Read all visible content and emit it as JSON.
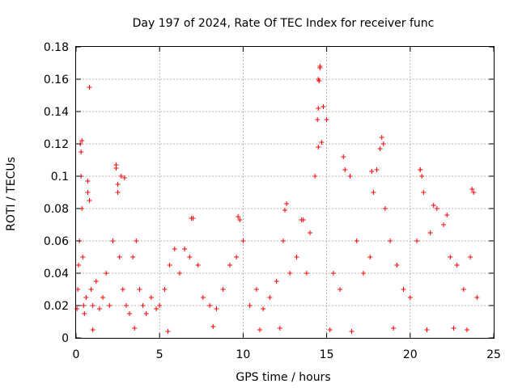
{
  "chart_data": {
    "type": "scatter",
    "title": "Day 197 of 2024, Rate Of TEC Index for receiver func",
    "xlabel": "GPS time / hours",
    "ylabel": "ROTI / TECUs",
    "xlim": [
      0,
      25
    ],
    "ylim": [
      0,
      0.18
    ],
    "x_ticks": [
      0,
      5,
      10,
      15,
      20,
      25
    ],
    "x_tick_labels": [
      "0",
      "5",
      "10",
      "15",
      "20",
      "25"
    ],
    "y_ticks": [
      0,
      0.02,
      0.04,
      0.06,
      0.08,
      0.1,
      0.12,
      0.14,
      0.16,
      0.18
    ],
    "y_tick_labels": [
      "0",
      "0.02",
      "0.04",
      "0.06",
      "0.08",
      "0.1",
      "0.12",
      "0.14",
      "0.16",
      "0.18"
    ],
    "grid": true,
    "marker": "plus",
    "color": "#ff0000",
    "series": [
      {
        "x": [
          0.05,
          0.1,
          0.15,
          0.2,
          0.25,
          0.3,
          0.35,
          0.4,
          0.45,
          0.5,
          0.6,
          0.7,
          0.8,
          0.9,
          1.0,
          1.2,
          1.4,
          1.6,
          1.8,
          2.0,
          2.2,
          2.4,
          2.5,
          2.6,
          2.7,
          2.8,
          3.0,
          3.2,
          3.4,
          3.6,
          3.8,
          4.0,
          4.2,
          4.5,
          4.8,
          5.0,
          5.3,
          5.6,
          5.9,
          6.2,
          6.5,
          6.8,
          7.0,
          7.3,
          7.6,
          8.0,
          8.4,
          8.8,
          9.2,
          9.6,
          9.8,
          10.0,
          10.4,
          10.8,
          11.2,
          11.6,
          12.0,
          12.4,
          12.6,
          12.8,
          13.2,
          13.6,
          13.8,
          14.0,
          14.3,
          14.5,
          14.6,
          14.8,
          15.0,
          15.4,
          15.8,
          16.0,
          16.4,
          16.8,
          17.2,
          17.6,
          17.8,
          18.0,
          18.3,
          18.5,
          18.8,
          19.2,
          19.6,
          20.0,
          20.4,
          20.6,
          20.8,
          21.2,
          21.6,
          22.0,
          22.4,
          22.8,
          23.2,
          23.6,
          23.8,
          24.0,
          0.3,
          0.7,
          2.4,
          2.9,
          6.9,
          9.7,
          12.5,
          13.5,
          14.45,
          14.5,
          14.55,
          14.6,
          16.1,
          17.7,
          18.4,
          20.6,
          21.4,
          23.7,
          0.35,
          0.8,
          2.5,
          14.5,
          14.7,
          18.2,
          20.7,
          22.2,
          1.0,
          3.5,
          5.5,
          8.2,
          11.0,
          12.2,
          15.2,
          16.5,
          19.0,
          21.0,
          22.6,
          23.4
        ],
        "y": [
          0.018,
          0.03,
          0.045,
          0.06,
          0.12,
          0.1,
          0.08,
          0.05,
          0.02,
          0.015,
          0.025,
          0.09,
          0.155,
          0.03,
          0.02,
          0.035,
          0.018,
          0.025,
          0.04,
          0.02,
          0.06,
          0.105,
          0.09,
          0.05,
          0.1,
          0.03,
          0.02,
          0.015,
          0.05,
          0.06,
          0.03,
          0.02,
          0.015,
          0.025,
          0.018,
          0.02,
          0.03,
          0.045,
          0.055,
          0.04,
          0.055,
          0.05,
          0.074,
          0.045,
          0.025,
          0.02,
          0.018,
          0.03,
          0.045,
          0.05,
          0.073,
          0.06,
          0.02,
          0.03,
          0.018,
          0.025,
          0.035,
          0.06,
          0.083,
          0.04,
          0.05,
          0.073,
          0.04,
          0.065,
          0.1,
          0.118,
          0.167,
          0.143,
          0.135,
          0.04,
          0.03,
          0.112,
          0.1,
          0.06,
          0.04,
          0.05,
          0.09,
          0.104,
          0.124,
          0.08,
          0.06,
          0.045,
          0.03,
          0.025,
          0.06,
          0.104,
          0.09,
          0.065,
          0.08,
          0.07,
          0.05,
          0.045,
          0.03,
          0.05,
          0.09,
          0.025,
          0.115,
          0.097,
          0.107,
          0.099,
          0.074,
          0.075,
          0.079,
          0.073,
          0.135,
          0.16,
          0.159,
          0.168,
          0.104,
          0.103,
          0.12,
          0.104,
          0.082,
          0.092,
          0.122,
          0.085,
          0.095,
          0.142,
          0.121,
          0.117,
          0.1,
          0.076,
          0.005,
          0.006,
          0.004,
          0.007,
          0.005,
          0.006,
          0.005,
          0.004,
          0.006,
          0.005,
          0.006,
          0.005
        ]
      }
    ]
  }
}
